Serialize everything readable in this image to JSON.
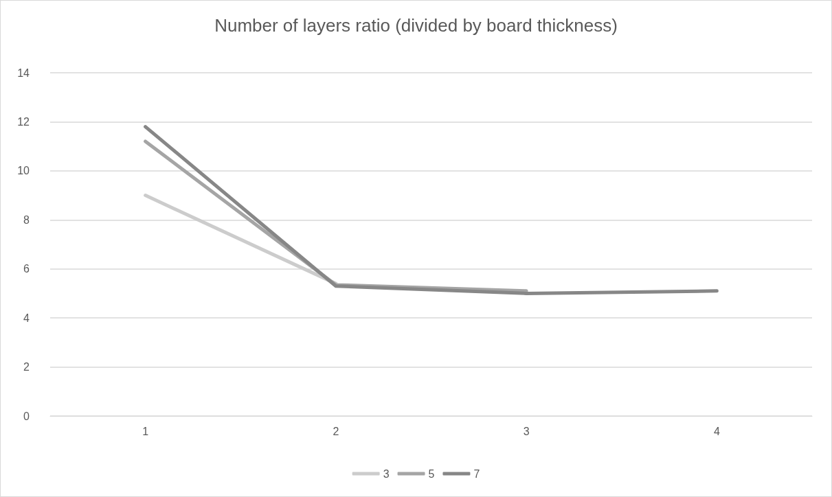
{
  "chart_data": {
    "type": "line",
    "title": "Number of layers ratio (divided by board thickness)",
    "categories": [
      "1",
      "2",
      "3",
      "4"
    ],
    "series": [
      {
        "name": "3",
        "color": "#cccccc",
        "values": [
          9.0,
          5.4,
          null,
          null
        ]
      },
      {
        "name": "5",
        "color": "#a5a5a5",
        "values": [
          11.2,
          5.35,
          5.1,
          null
        ]
      },
      {
        "name": "7",
        "color": "#878787",
        "values": [
          11.8,
          5.3,
          5.0,
          5.1
        ]
      }
    ],
    "ylim": [
      0,
      14
    ],
    "yticks": [
      0,
      2,
      4,
      6,
      8,
      10,
      12,
      14
    ],
    "grid": "y",
    "legend": "bottom",
    "marker": "none",
    "line_style": "solid"
  }
}
